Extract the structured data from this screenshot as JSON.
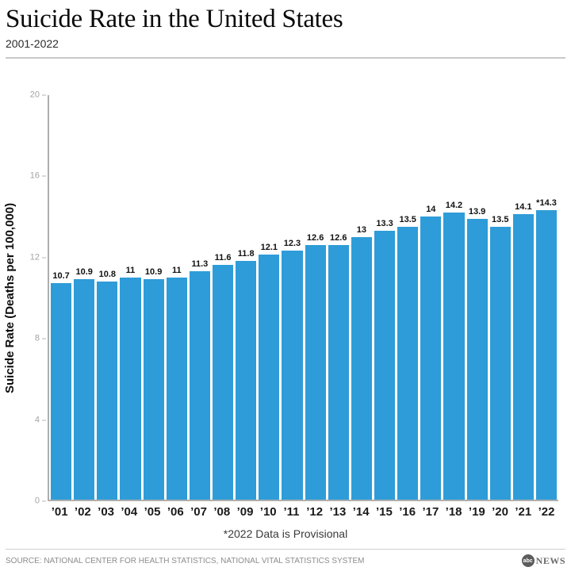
{
  "header": {
    "title": "Suicide Rate in the United States",
    "subtitle": "2001-2022"
  },
  "chart_data": {
    "type": "bar",
    "title": "Suicide Rate in the United States",
    "subtitle": "2001-2022",
    "xlabel": "",
    "ylabel": "Suicide Rate (Deaths per 100,000)",
    "ylim": [
      0,
      20
    ],
    "yticks": [
      0,
      4,
      8,
      12,
      16,
      20
    ],
    "grid": false,
    "legend": "none",
    "bar_color": "#2E9CD8",
    "categories": [
      "’01",
      "’02",
      "’03",
      "’04",
      "’05",
      "’06",
      "’07",
      "’08",
      "’09",
      "’10",
      "’11",
      "’12",
      "’13",
      "’14",
      "’15",
      "’16",
      "’17",
      "’18",
      "’19",
      "’20",
      "’21",
      "’22"
    ],
    "values": [
      10.7,
      10.9,
      10.8,
      11,
      10.9,
      11,
      11.3,
      11.6,
      11.8,
      12.1,
      12.3,
      12.6,
      12.6,
      13,
      13.3,
      13.5,
      14,
      14.2,
      13.9,
      13.5,
      14.1,
      14.3
    ],
    "value_labels": [
      "10.7",
      "10.9",
      "10.8",
      "11",
      "10.9",
      "11",
      "11.3",
      "11.6",
      "11.8",
      "12.1",
      "12.3",
      "12.6",
      "12.6",
      "13",
      "13.3",
      "13.5",
      "14",
      "14.2",
      "13.9",
      "13.5",
      "14.1",
      "*14.3"
    ],
    "footnote": "*2022 Data is Provisional"
  },
  "footer": {
    "source": "SOURCE: NATIONAL CENTER FOR HEALTH STATISTICS, NATIONAL VITAL STATISTICS SYSTEM",
    "logo": {
      "circle_text": "abc",
      "news_text": "NEWS"
    }
  }
}
